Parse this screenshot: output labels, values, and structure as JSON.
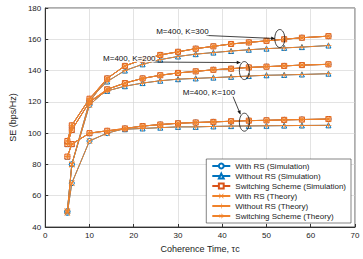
{
  "chart_data": {
    "type": "line",
    "x_label": "Coherence Time, τc",
    "y_label": "SE (bps/Hz)",
    "x": [
      5,
      6,
      10,
      14,
      18,
      22,
      26,
      30,
      34,
      38,
      42,
      46,
      50,
      54,
      58,
      64
    ],
    "xlim": [
      0,
      70
    ],
    "xticks": [
      0,
      10,
      20,
      30,
      40,
      50,
      60,
      70
    ],
    "ylim": [
      40,
      180
    ],
    "yticks": [
      40,
      60,
      80,
      100,
      120,
      140,
      160,
      180
    ],
    "grid": true,
    "legend": "lower right",
    "series": [
      {
        "name": "With RS (Simulation)",
        "color": "#0072BD",
        "marker": "circle",
        "line_style": "solid",
        "values": [
          49,
          68,
          95,
          100,
          103,
          104.5,
          105.5,
          106.3,
          106.8,
          107.2,
          107.6,
          108,
          108.2,
          108.5,
          108.7,
          109
        ]
      },
      {
        "name": "Without RS (Simulation)",
        "color": "#0072BD",
        "marker": "triangle",
        "line_style": "solid",
        "values": [
          85,
          93,
          100,
          101.5,
          102.5,
          103,
          103.5,
          104,
          104,
          104.3,
          104.5,
          104.6,
          104.7,
          104.8,
          104.9,
          105
        ]
      },
      {
        "name": "Switching Scheme (Simulation)",
        "color": "#D95319",
        "marker": "square",
        "line_style": "solid",
        "values": [
          85,
          93,
          100,
          101.5,
          103,
          104.5,
          105.5,
          106.3,
          106.8,
          107.2,
          107.6,
          108,
          108.2,
          108.5,
          108.7,
          109
        ]
      },
      {
        "name": "With RS (Theory)",
        "color": "#F0822A",
        "marker": "x",
        "line_style": "solid",
        "values": [
          49,
          68,
          95,
          100,
          103,
          104.5,
          105.5,
          106.3,
          106.8,
          107.2,
          107.6,
          108,
          108.2,
          108.5,
          108.7,
          109
        ]
      },
      {
        "name": "Without RS (Theory)",
        "color": "#F0822A",
        "marker": "plus",
        "line_style": "solid",
        "values": [
          85,
          93,
          100,
          101.5,
          102.5,
          103,
          103.5,
          104,
          104,
          104.3,
          104.5,
          104.6,
          104.7,
          104.8,
          104.9,
          105
        ]
      },
      {
        "name": "Switching Scheme (Theory)",
        "color": "#F0822A",
        "marker": "asterisk",
        "line_style": "solid",
        "values": [
          85,
          93,
          100,
          101.5,
          103,
          104.5,
          105.5,
          106.3,
          106.8,
          107.2,
          107.6,
          108,
          108.2,
          108.5,
          108.7,
          109
        ]
      },
      {
        "name": "With RS (Simulation)",
        "color": "#0072BD",
        "marker": "circle",
        "line_style": "solid",
        "values": [
          50,
          80,
          118,
          128,
          132,
          135,
          137,
          138.5,
          139.5,
          140.5,
          141.2,
          142,
          142.5,
          143,
          143.5,
          144
        ]
      },
      {
        "name": "Without RS (Simulation)",
        "color": "#0072BD",
        "marker": "triangle",
        "line_style": "solid",
        "values": [
          93,
          102,
          120,
          127,
          130,
          132,
          133.5,
          134.5,
          135,
          135.5,
          136,
          136.5,
          137,
          137.2,
          137.5,
          138
        ]
      },
      {
        "name": "Switching Scheme (Simulation)",
        "color": "#D95319",
        "marker": "square",
        "line_style": "solid",
        "values": [
          93,
          102,
          120,
          128,
          132,
          135,
          137,
          138.5,
          139.5,
          140.5,
          141.2,
          142,
          142.5,
          143,
          143.5,
          144
        ]
      },
      {
        "name": "With RS (Theory)",
        "color": "#F0822A",
        "marker": "x",
        "line_style": "solid",
        "values": [
          50,
          80,
          118,
          128,
          132,
          135,
          137,
          138.5,
          139.5,
          140.5,
          141.2,
          142,
          142.5,
          143,
          143.5,
          144
        ]
      },
      {
        "name": "Without RS (Theory)",
        "color": "#F0822A",
        "marker": "plus",
        "line_style": "solid",
        "values": [
          93,
          102,
          120,
          127,
          130,
          132,
          133.5,
          134.5,
          135,
          135.5,
          136,
          136.5,
          137,
          137.2,
          137.5,
          138
        ]
      },
      {
        "name": "Switching Scheme (Theory)",
        "color": "#F0822A",
        "marker": "asterisk",
        "line_style": "solid",
        "values": [
          93,
          102,
          120,
          128,
          132,
          135,
          137,
          138.5,
          139.5,
          140.5,
          141.2,
          142,
          142.5,
          143,
          143.5,
          144
        ]
      },
      {
        "name": "With RS (Simulation)",
        "color": "#0072BD",
        "marker": "circle",
        "line_style": "solid",
        "values": [
          50,
          80,
          120,
          135,
          143,
          147,
          150,
          152,
          154,
          155.5,
          157,
          158,
          159,
          160,
          161,
          162
        ]
      },
      {
        "name": "Without RS (Simulation)",
        "color": "#0072BD",
        "marker": "triangle",
        "line_style": "solid",
        "values": [
          95,
          105,
          122,
          133,
          140,
          144,
          147,
          149,
          150.5,
          151.5,
          152.5,
          153.3,
          154,
          154.5,
          155,
          156
        ]
      },
      {
        "name": "Switching Scheme (Simulation)",
        "color": "#D95319",
        "marker": "square",
        "line_style": "solid",
        "values": [
          95,
          105,
          122,
          135,
          143,
          147,
          150,
          152,
          154,
          155.5,
          157,
          158,
          159,
          160,
          161,
          162
        ]
      },
      {
        "name": "With RS (Theory)",
        "color": "#F0822A",
        "marker": "x",
        "line_style": "solid",
        "values": [
          50,
          80,
          120,
          135,
          143,
          147,
          150,
          152,
          154,
          155.5,
          157,
          158,
          159,
          160,
          161,
          162
        ]
      },
      {
        "name": "Without RS (Theory)",
        "color": "#F0822A",
        "marker": "plus",
        "line_style": "solid",
        "values": [
          95,
          105,
          122,
          133,
          140,
          144,
          147,
          149,
          150.5,
          151.5,
          152.5,
          153.3,
          154,
          154.5,
          155,
          156
        ]
      },
      {
        "name": "Switching Scheme (Theory)",
        "color": "#F0822A",
        "marker": "asterisk",
        "line_style": "solid",
        "values": [
          95,
          105,
          122,
          135,
          143,
          147,
          150,
          152,
          154,
          155.5,
          157,
          158,
          159,
          160,
          161,
          162
        ]
      }
    ],
    "annotations": [
      {
        "text": "M=400, K=300",
        "x": 31,
        "y": 165,
        "arrow_x": 53,
        "arrow_y": 160.5
      },
      {
        "text": "M=400, K=200",
        "x": 19,
        "y": 148,
        "arrow_x": 45,
        "arrow_y": 140
      },
      {
        "text": "M=400, K=100",
        "x": 37,
        "y": 126,
        "arrow_x": 45,
        "arrow_y": 107
      }
    ]
  }
}
